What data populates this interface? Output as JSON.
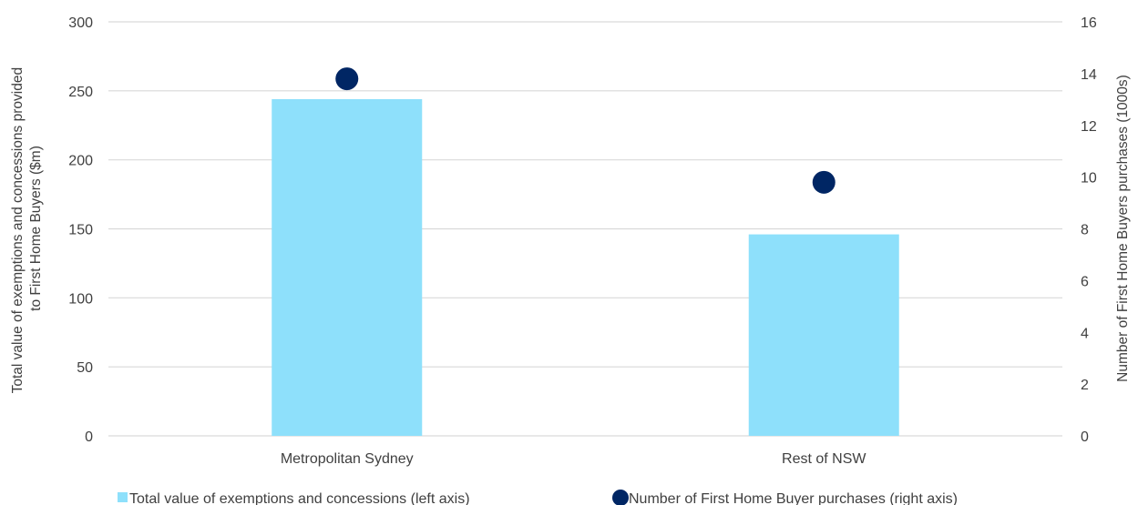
{
  "chart_data": {
    "type": "bar",
    "categories": [
      "Metropolitan Sydney",
      "Rest of NSW"
    ],
    "series": [
      {
        "name": "Total value of exemptions and concessions (left axis)",
        "type": "bar",
        "axis": "left",
        "values": [
          244,
          146
        ],
        "color": "#8ee0fb"
      },
      {
        "name": "Number of First Home Buyer purchases (right axis)",
        "type": "scatter",
        "axis": "right",
        "values": [
          13.8,
          9.8
        ],
        "color": "#002664"
      }
    ],
    "y_left": {
      "label_lines": [
        "Total value of exemptions and concessions provided",
        "to First Home Buyers ($m)"
      ],
      "ylim": [
        0,
        300
      ],
      "ticks": [
        "0",
        "50",
        "100",
        "150",
        "200",
        "250",
        "300"
      ]
    },
    "y_right": {
      "label": "Number of First Home Buyers purchases (1000s)",
      "ylim": [
        0,
        16
      ],
      "ticks": [
        "0",
        "2",
        "4",
        "6",
        "8",
        "10",
        "12",
        "14",
        "16"
      ]
    },
    "grid": true,
    "legend_position": "bottom",
    "grid_color": "#d9d9d9",
    "text_color": "#404040"
  }
}
